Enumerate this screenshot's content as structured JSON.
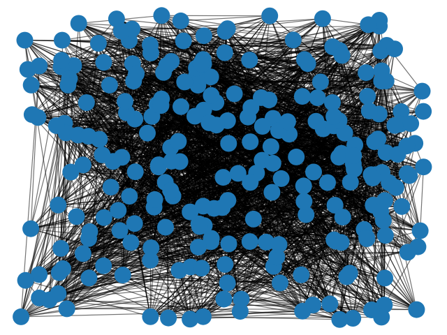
{
  "diagram": {
    "type": "network-graph",
    "layout": "random",
    "node_color": "#1f77b4",
    "edge_color": "#000000",
    "background": "#ffffff",
    "node_count": 260,
    "edge_count": 2600,
    "node_labels_visible": false,
    "density": "very dense"
  }
}
